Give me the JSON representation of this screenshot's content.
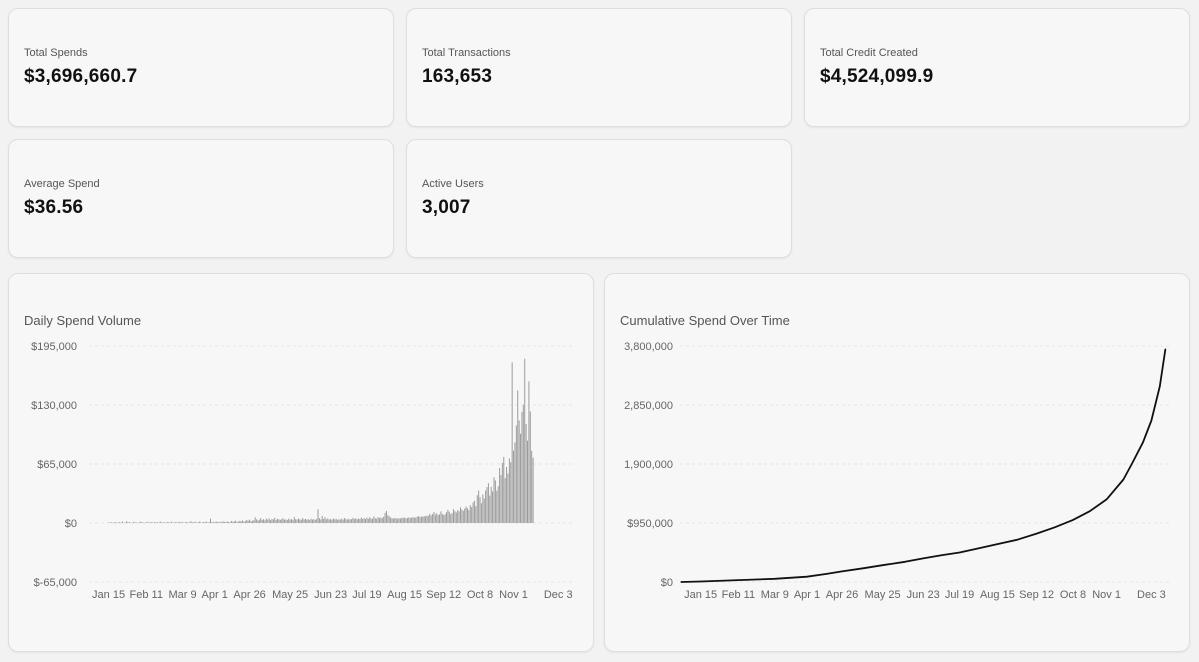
{
  "stats": [
    {
      "label": "Total Spends",
      "value": "$3,696,660.7"
    },
    {
      "label": "Total Transactions",
      "value": "163,653"
    },
    {
      "label": "Total Credit Created",
      "value": "$4,524,099.9"
    },
    {
      "label": "Average Spend",
      "value": "$36.56"
    },
    {
      "label": "Active Users",
      "value": "3,007"
    }
  ],
  "colors": {
    "bar": "#9a9a9a",
    "line": "#111111",
    "grid": "#e6e6e6"
  },
  "chart_data": [
    {
      "type": "bar",
      "title": "Daily Spend Volume",
      "y_ticks": [
        -65000,
        0,
        65000,
        130000,
        195000
      ],
      "y_tick_labels": [
        "$-65,000",
        "$0",
        "$65,000",
        "$130,000",
        "$195,000"
      ],
      "ylim": [
        -65000,
        195000
      ],
      "x_tick_labels": [
        "Jan 15",
        "Feb 11",
        "Mar 9",
        "Apr 1",
        "Apr 26",
        "May 25",
        "Jun 23",
        "Jul 19",
        "Aug 15",
        "Sep 12",
        "Oct 8",
        "Nov 1",
        "Dec 3"
      ],
      "x_tick_days": [
        14,
        41,
        67,
        90,
        115,
        144,
        173,
        199,
        226,
        254,
        280,
        304,
        336
      ],
      "start_day": 0,
      "values": [
        500,
        400,
        900,
        300,
        600,
        1100,
        200,
        700,
        800,
        400,
        1500,
        600,
        300,
        1900,
        700,
        1000,
        300,
        400,
        1200,
        900,
        600,
        200,
        500,
        1600,
        800,
        400,
        300,
        700,
        1300,
        500,
        600,
        900,
        400,
        1100,
        300,
        800,
        500,
        1700,
        600,
        400,
        900,
        300,
        1200,
        700,
        500,
        1500,
        400,
        600,
        800,
        1000,
        300,
        1400,
        600,
        900,
        500,
        700,
        1100,
        400,
        800,
        2000,
        600,
        900,
        1300,
        500,
        700,
        1600,
        900,
        400,
        1200,
        800,
        1500,
        600,
        1000,
        4800,
        900,
        1300,
        700,
        1600,
        1100,
        900,
        1400,
        800,
        1800,
        1200,
        1000,
        1600,
        1300,
        900,
        2200,
        1400,
        1700,
        2600,
        1200,
        1500,
        2400,
        1800,
        2800,
        1600,
        2100,
        3400,
        2500,
        3700,
        2000,
        2600,
        3100,
        6200,
        4000,
        2800,
        3600,
        5500,
        3300,
        4200,
        3000,
        4900,
        3700,
        5100,
        3200,
        4400,
        3900,
        5800,
        3400,
        4600,
        4100,
        3500,
        4300,
        5200,
        3600,
        4000,
        3300,
        4800,
        3800,
        4200,
        3500,
        6500,
        4300,
        3700,
        4900,
        4000,
        3600,
        5400,
        3900,
        4500,
        3700,
        4300,
        3200,
        4700,
        3800,
        4200,
        3400,
        4600,
        15000,
        5300,
        3900,
        7800,
        4500,
        6400,
        4100,
        5000,
        3800,
        4400,
        3600,
        5100,
        3900,
        4600,
        3500,
        4200,
        3700,
        4900,
        3600,
        5500,
        4300,
        3800,
        4700,
        3900,
        4200,
        5800,
        4400,
        5200,
        4100,
        4800,
        4300,
        6000,
        4600,
        5300,
        4400,
        5900,
        4700,
        6300,
        5000,
        4600,
        7200,
        5200,
        4800,
        6600,
        5500,
        6100,
        5300,
        7000,
        11200,
        13400,
        8500,
        7400,
        6000,
        5200,
        4900,
        5500,
        5100,
        4700,
        5300,
        4900,
        5800,
        5400,
        6000,
        5100,
        5600,
        6300,
        5500,
        5900,
        6500,
        5800,
        6200,
        6900,
        7800,
        6400,
        7200,
        6900,
        7600,
        7300,
        8100,
        7900,
        10200,
        8400,
        9800,
        12200,
        9300,
        10800,
        8700,
        9600,
        12800,
        10100,
        8900,
        9700,
        11900,
        14500,
        12400,
        9700,
        10900,
        15300,
        13100,
        11600,
        14200,
        12900,
        17200,
        14900,
        13400,
        15800,
        18200,
        16400,
        14100,
        19800,
        17500,
        22700,
        24500,
        18600,
        30600,
        35700,
        28400,
        21800,
        31500,
        27000,
        35800,
        39500,
        43800,
        30200,
        40000,
        34800,
        50200,
        46900,
        35700,
        40400,
        60600,
        52800,
        66300,
        72800,
        49400,
        61700,
        54500,
        71200,
        66900,
        177000,
        79700,
        88800,
        107500,
        146000,
        113000,
        98300,
        122500,
        130300,
        181000,
        109000,
        90700,
        156000,
        123000,
        79600,
        71900
      ],
      "start_day_of_values": 14
    },
    {
      "type": "line",
      "title": "Cumulative Spend Over Time",
      "y_ticks": [
        0,
        950000,
        1900000,
        2850000,
        3800000
      ],
      "y_tick_labels": [
        "$0",
        "$950,000",
        "1,900,000",
        "2,850,000",
        "3,800,000"
      ],
      "ylim": [
        0,
        3800000
      ],
      "x_tick_labels": [
        "Jan 15",
        "Feb 11",
        "Mar 9",
        "Apr 1",
        "Apr 26",
        "May 25",
        "Jun 23",
        "Jul 19",
        "Aug 15",
        "Sep 12",
        "Oct 8",
        "Nov 1",
        "Dec 3"
      ],
      "x_tick_days": [
        14,
        41,
        67,
        90,
        115,
        144,
        173,
        199,
        226,
        254,
        280,
        304,
        336
      ],
      "x": [
        0,
        14,
        41,
        67,
        90,
        104,
        115,
        130,
        144,
        160,
        173,
        186,
        199,
        212,
        226,
        240,
        254,
        267,
        280,
        292,
        304,
        316,
        322,
        330,
        336,
        342,
        346
      ],
      "y": [
        0,
        8000,
        30000,
        52000,
        85000,
        130000,
        170000,
        220000,
        270000,
        325000,
        380000,
        430000,
        475000,
        540000,
        610000,
        680000,
        780000,
        880000,
        1000000,
        1140000,
        1330000,
        1650000,
        1900000,
        2250000,
        2600000,
        3150000,
        3750000
      ]
    }
  ]
}
